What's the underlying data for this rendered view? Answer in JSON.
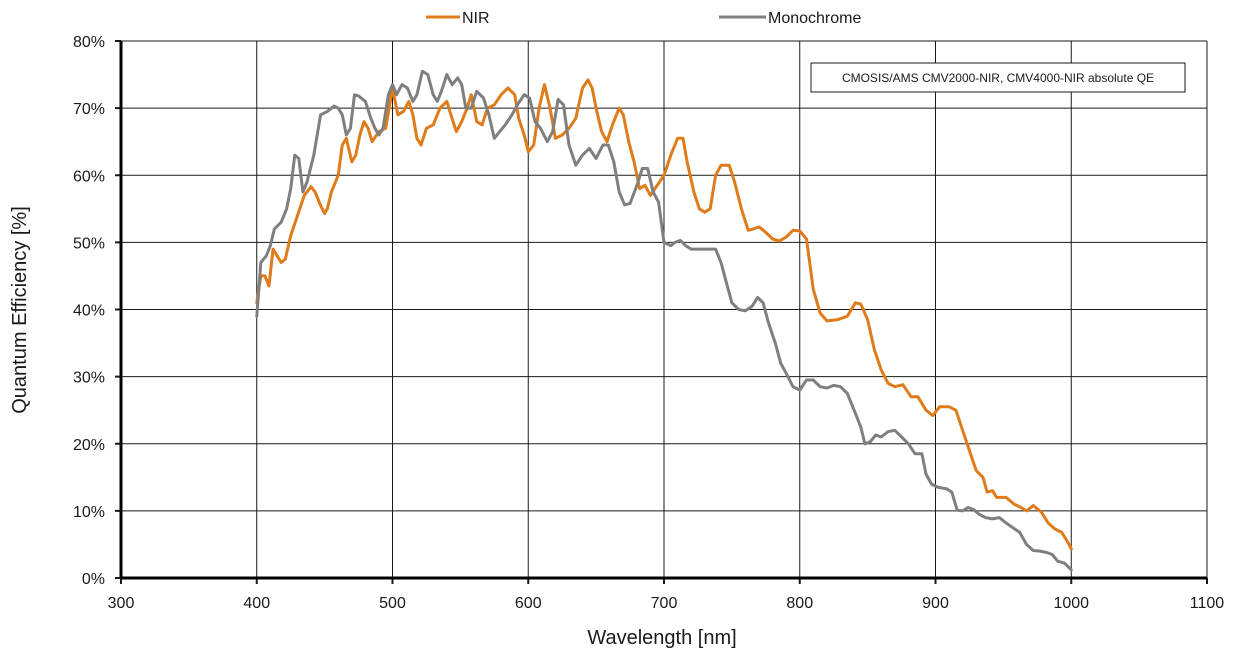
{
  "chart_data": {
    "type": "line",
    "title": "",
    "xlabel": "Wavelength [nm]",
    "ylabel": "Quantum Efficiency [%]",
    "xlim": [
      300,
      1100
    ],
    "ylim": [
      0,
      80
    ],
    "x_ticks": [
      "300",
      "400",
      "500",
      "600",
      "700",
      "800",
      "900",
      "1000",
      "1100"
    ],
    "y_ticks": [
      "0%",
      "10%",
      "20%",
      "30%",
      "40%",
      "50%",
      "60%",
      "70%",
      "80%"
    ],
    "grid": true,
    "legend_position": "top-center",
    "annotation": "CMOSIS/AMS CMV2000-NIR, CMV4000-NIR absolute QE",
    "series": [
      {
        "name": "NIR",
        "color": "#e07b1a",
        "points": [
          [
            400,
            41
          ],
          [
            403,
            45
          ],
          [
            406,
            45
          ],
          [
            409,
            43.5
          ],
          [
            412,
            49
          ],
          [
            415,
            48
          ],
          [
            418,
            47
          ],
          [
            421,
            47.5
          ],
          [
            425,
            51
          ],
          [
            430,
            54
          ],
          [
            435,
            57
          ],
          [
            440,
            58.3
          ],
          [
            443,
            57.5
          ],
          [
            447,
            55.5
          ],
          [
            450,
            54.3
          ],
          [
            452,
            55
          ],
          [
            455,
            57.5
          ],
          [
            460,
            60
          ],
          [
            463,
            64.5
          ],
          [
            466,
            65.5
          ],
          [
            470,
            62
          ],
          [
            473,
            63
          ],
          [
            476,
            66
          ],
          [
            479,
            68
          ],
          [
            482,
            67
          ],
          [
            485,
            65
          ],
          [
            490,
            66.5
          ],
          [
            495,
            67
          ],
          [
            500,
            73
          ],
          [
            504,
            69
          ],
          [
            508,
            69.5
          ],
          [
            512,
            71
          ],
          [
            515,
            69
          ],
          [
            518,
            65.5
          ],
          [
            521,
            64.5
          ],
          [
            525,
            67
          ],
          [
            530,
            67.5
          ],
          [
            535,
            70
          ],
          [
            540,
            71
          ],
          [
            543,
            69
          ],
          [
            547,
            66.5
          ],
          [
            551,
            68
          ],
          [
            555,
            70
          ],
          [
            558,
            72
          ],
          [
            562,
            68
          ],
          [
            566,
            67.5
          ],
          [
            570,
            70
          ],
          [
            575,
            70.5
          ],
          [
            580,
            72
          ],
          [
            585,
            73
          ],
          [
            590,
            72
          ],
          [
            593,
            68.5
          ],
          [
            597,
            66
          ],
          [
            600,
            63.5
          ],
          [
            604,
            64.5
          ],
          [
            608,
            70
          ],
          [
            612,
            73.5
          ],
          [
            616,
            70
          ],
          [
            620,
            65.5
          ],
          [
            625,
            66
          ],
          [
            630,
            67
          ],
          [
            635,
            68.5
          ],
          [
            640,
            73
          ],
          [
            644,
            74.2
          ],
          [
            647,
            73
          ],
          [
            650,
            70
          ],
          [
            654,
            66.5
          ],
          [
            658,
            65
          ],
          [
            662,
            67.5
          ],
          [
            667,
            70
          ],
          [
            670,
            69
          ],
          [
            674,
            65
          ],
          [
            678,
            62
          ],
          [
            682,
            58
          ],
          [
            686,
            58.5
          ],
          [
            690,
            57
          ],
          [
            695,
            58.5
          ],
          [
            700,
            60
          ],
          [
            705,
            63
          ],
          [
            710,
            65.5
          ],
          [
            714,
            65.5
          ],
          [
            717,
            62
          ],
          [
            722,
            57.5
          ],
          [
            726,
            55
          ],
          [
            730,
            54.5
          ],
          [
            734,
            55
          ],
          [
            738,
            60
          ],
          [
            742,
            61.5
          ],
          [
            748,
            61.5
          ],
          [
            752,
            59
          ],
          [
            757,
            55
          ],
          [
            762,
            51.8
          ],
          [
            766,
            52
          ],
          [
            770,
            52.3
          ],
          [
            775,
            51.5
          ],
          [
            780,
            50.5
          ],
          [
            785,
            50.2
          ],
          [
            790,
            50.8
          ],
          [
            795,
            51.8
          ],
          [
            800,
            51.7
          ],
          [
            805,
            50.5
          ],
          [
            810,
            43
          ],
          [
            815,
            39.5
          ],
          [
            820,
            38.3
          ],
          [
            828,
            38.5
          ],
          [
            835,
            39
          ],
          [
            841,
            41
          ],
          [
            845,
            40.8
          ],
          [
            850,
            38.5
          ],
          [
            855,
            34
          ],
          [
            860,
            31
          ],
          [
            865,
            29
          ],
          [
            870,
            28.5
          ],
          [
            876,
            28.8
          ],
          [
            882,
            27
          ],
          [
            887,
            27
          ],
          [
            893,
            25
          ],
          [
            898,
            24.2
          ],
          [
            903,
            25.5
          ],
          [
            910,
            25.5
          ],
          [
            915,
            25
          ],
          [
            920,
            22
          ],
          [
            925,
            19
          ],
          [
            930,
            16
          ],
          [
            935,
            15
          ],
          [
            938,
            12.8
          ],
          [
            942,
            13
          ],
          [
            945,
            12
          ],
          [
            952,
            12
          ],
          [
            958,
            11
          ],
          [
            963,
            10.5
          ],
          [
            967,
            10
          ],
          [
            972,
            10.8
          ],
          [
            978,
            9.8
          ],
          [
            983,
            8.2
          ],
          [
            988,
            7.3
          ],
          [
            993,
            6.8
          ],
          [
            997,
            5.5
          ],
          [
            1000,
            4.3
          ]
        ]
      },
      {
        "name": "Monochrome",
        "color": "#7f7f7f",
        "points": [
          [
            400,
            39
          ],
          [
            403,
            47
          ],
          [
            407,
            48
          ],
          [
            410,
            49.5
          ],
          [
            413,
            52
          ],
          [
            418,
            53
          ],
          [
            422,
            55
          ],
          [
            425,
            58
          ],
          [
            428,
            63
          ],
          [
            431,
            62.5
          ],
          [
            434,
            57.5
          ],
          [
            437,
            59
          ],
          [
            442,
            63
          ],
          [
            447,
            69
          ],
          [
            452,
            69.5
          ],
          [
            457,
            70.3
          ],
          [
            460,
            70
          ],
          [
            463,
            69
          ],
          [
            466,
            66
          ],
          [
            469,
            67
          ],
          [
            472,
            72
          ],
          [
            475,
            71.8
          ],
          [
            480,
            71
          ],
          [
            484,
            68.5
          ],
          [
            487,
            67
          ],
          [
            490,
            66
          ],
          [
            493,
            67
          ],
          [
            497,
            72
          ],
          [
            500,
            73.5
          ],
          [
            503,
            72
          ],
          [
            507,
            73.5
          ],
          [
            511,
            73
          ],
          [
            515,
            71
          ],
          [
            518,
            72
          ],
          [
            522,
            75.5
          ],
          [
            526,
            75
          ],
          [
            530,
            72
          ],
          [
            533,
            71
          ],
          [
            536,
            72.5
          ],
          [
            540,
            75
          ],
          [
            544,
            73.5
          ],
          [
            548,
            74.5
          ],
          [
            551,
            73.5
          ],
          [
            554,
            70
          ],
          [
            558,
            70
          ],
          [
            562,
            72.5
          ],
          [
            567,
            71.5
          ],
          [
            571,
            69
          ],
          [
            575,
            65.5
          ],
          [
            579,
            66.5
          ],
          [
            583,
            67.5
          ],
          [
            588,
            69
          ],
          [
            592,
            70.5
          ],
          [
            597,
            72
          ],
          [
            601,
            71.5
          ],
          [
            605,
            68
          ],
          [
            609,
            67
          ],
          [
            614,
            65
          ],
          [
            618,
            66.5
          ],
          [
            622,
            71.3
          ],
          [
            626,
            70.5
          ],
          [
            630,
            64.5
          ],
          [
            635,
            61.5
          ],
          [
            640,
            63
          ],
          [
            645,
            64
          ],
          [
            650,
            62.5
          ],
          [
            655,
            64.5
          ],
          [
            659,
            64.5
          ],
          [
            663,
            62
          ],
          [
            667,
            57.5
          ],
          [
            671,
            55.6
          ],
          [
            675,
            55.8
          ],
          [
            680,
            58.5
          ],
          [
            684,
            61
          ],
          [
            688,
            61
          ],
          [
            692,
            57.5
          ],
          [
            696,
            56
          ],
          [
            700,
            50
          ],
          [
            705,
            49.5
          ],
          [
            708,
            50
          ],
          [
            712,
            50.3
          ],
          [
            716,
            49.5
          ],
          [
            720,
            49
          ],
          [
            730,
            49
          ],
          [
            738,
            49
          ],
          [
            742,
            47
          ],
          [
            746,
            44
          ],
          [
            750,
            41
          ],
          [
            755,
            40
          ],
          [
            760,
            39.8
          ],
          [
            765,
            40.5
          ],
          [
            769,
            41.8
          ],
          [
            773,
            41
          ],
          [
            777,
            38
          ],
          [
            782,
            35
          ],
          [
            786,
            32
          ],
          [
            790,
            30.5
          ],
          [
            795,
            28.5
          ],
          [
            800,
            28
          ],
          [
            805,
            29.5
          ],
          [
            810,
            29.5
          ],
          [
            815,
            28.5
          ],
          [
            820,
            28.3
          ],
          [
            825,
            28.7
          ],
          [
            830,
            28.5
          ],
          [
            835,
            27.5
          ],
          [
            840,
            25
          ],
          [
            845,
            22.5
          ],
          [
            848,
            20
          ],
          [
            852,
            20.3
          ],
          [
            856,
            21.3
          ],
          [
            860,
            21
          ],
          [
            865,
            21.8
          ],
          [
            870,
            22
          ],
          [
            875,
            21
          ],
          [
            880,
            20
          ],
          [
            885,
            18.5
          ],
          [
            890,
            18.5
          ],
          [
            893,
            15.5
          ],
          [
            897,
            14
          ],
          [
            902,
            13.5
          ],
          [
            908,
            13.3
          ],
          [
            912,
            12.8
          ],
          [
            916,
            10.1
          ],
          [
            920,
            10
          ],
          [
            924,
            10.5
          ],
          [
            928,
            10.2
          ],
          [
            932,
            9.5
          ],
          [
            937,
            9
          ],
          [
            942,
            8.8
          ],
          [
            947,
            9
          ],
          [
            952,
            8.2
          ],
          [
            957,
            7.5
          ],
          [
            962,
            6.8
          ],
          [
            967,
            5
          ],
          [
            972,
            4.1
          ],
          [
            977,
            4
          ],
          [
            982,
            3.8
          ],
          [
            986,
            3.5
          ],
          [
            990,
            2.5
          ],
          [
            995,
            2.2
          ],
          [
            1000,
            1.2
          ]
        ]
      }
    ]
  }
}
